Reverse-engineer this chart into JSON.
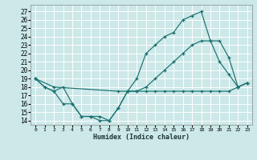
{
  "xlabel": "Humidex (Indice chaleur)",
  "bg_color": "#cce8e8",
  "grid_color": "#ffffff",
  "line_color": "#1a7070",
  "xlim": [
    -0.5,
    23.5
  ],
  "ylim": [
    13.5,
    27.8
  ],
  "xticks": [
    0,
    1,
    2,
    3,
    4,
    5,
    6,
    7,
    8,
    9,
    10,
    11,
    12,
    13,
    14,
    15,
    16,
    17,
    18,
    19,
    20,
    21,
    22,
    23
  ],
  "yticks": [
    14,
    15,
    16,
    17,
    18,
    19,
    20,
    21,
    22,
    23,
    24,
    25,
    26,
    27
  ],
  "line1_x": [
    0,
    1,
    2,
    3,
    4,
    5,
    6,
    7,
    8,
    9,
    10,
    11,
    12,
    13,
    14,
    15,
    16,
    17,
    18,
    19,
    20,
    21,
    22,
    23
  ],
  "line1_y": [
    19,
    18,
    17.5,
    18,
    16,
    14.5,
    14.5,
    14,
    14,
    15.5,
    17.5,
    19,
    22,
    23,
    24,
    24.5,
    26,
    26.5,
    27,
    23.5,
    21,
    19.5,
    18,
    18.5
  ],
  "line2_x": [
    0,
    2,
    9,
    10,
    11,
    12,
    13,
    14,
    15,
    16,
    17,
    18,
    19,
    20,
    21,
    22,
    23
  ],
  "line2_y": [
    19,
    18,
    17.5,
    17.5,
    17.5,
    18,
    19,
    20,
    21,
    22,
    23,
    23.5,
    23.5,
    23.5,
    21.5,
    18,
    18.5
  ],
  "line3_x": [
    0,
    1,
    2,
    3,
    4,
    5,
    6,
    7,
    8,
    9,
    10,
    11,
    12,
    13,
    14,
    15,
    16,
    17,
    18,
    19,
    20,
    21,
    22,
    23
  ],
  "line3_y": [
    19,
    18,
    17.5,
    16,
    16,
    14.5,
    14.5,
    14.5,
    14,
    15.5,
    17.5,
    17.5,
    17.5,
    17.5,
    17.5,
    17.5,
    17.5,
    17.5,
    17.5,
    17.5,
    17.5,
    17.5,
    18,
    18.5
  ]
}
